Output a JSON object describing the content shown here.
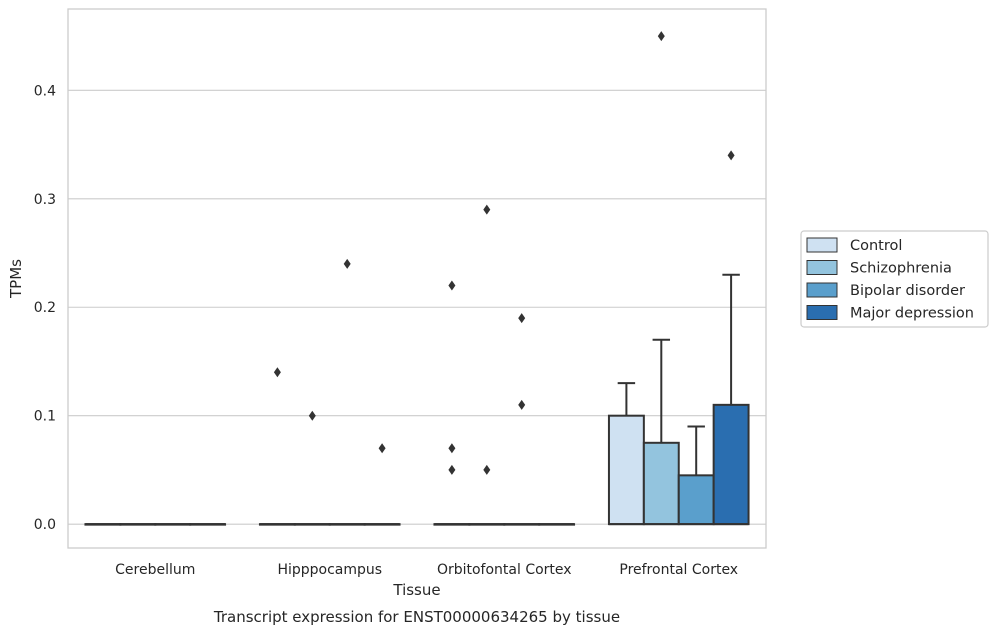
{
  "chart_data": {
    "type": "box",
    "title": "Transcript expression for ENST00000634265 by tissue",
    "xlabel": "Tissue",
    "ylabel": "TPMs",
    "ylim": [
      -0.022,
      0.475
    ],
    "yticks": [
      0.0,
      0.1,
      0.2,
      0.3,
      0.4
    ],
    "ytick_labels": [
      "0.0",
      "0.1",
      "0.2",
      "0.3",
      "0.4"
    ],
    "grid": true,
    "legend_position": "right",
    "categories": [
      "Cerebellum",
      "Hipppocampus",
      "Orbitofontal Cortex",
      "Prefrontal Cortex"
    ],
    "series": [
      {
        "name": "Control",
        "color": "#cfe1f2",
        "boxes": [
          {
            "q1": 0,
            "median": 0,
            "q3": 0,
            "whisker_low": 0,
            "whisker_high": 0,
            "outliers": []
          },
          {
            "q1": 0,
            "median": 0,
            "q3": 0,
            "whisker_low": 0,
            "whisker_high": 0,
            "outliers": [
              0.14
            ]
          },
          {
            "q1": 0,
            "median": 0,
            "q3": 0,
            "whisker_low": 0,
            "whisker_high": 0,
            "outliers": [
              0.07,
              0.05,
              0.22
            ]
          },
          {
            "q1": 0,
            "median": 0,
            "q3": 0.1,
            "whisker_low": 0,
            "whisker_high": 0.13,
            "outliers": []
          }
        ]
      },
      {
        "name": "Schizophrenia",
        "color": "#93c4de",
        "boxes": [
          {
            "q1": 0,
            "median": 0,
            "q3": 0,
            "whisker_low": 0,
            "whisker_high": 0,
            "outliers": []
          },
          {
            "q1": 0,
            "median": 0,
            "q3": 0,
            "whisker_low": 0,
            "whisker_high": 0,
            "outliers": [
              0.1
            ]
          },
          {
            "q1": 0,
            "median": 0,
            "q3": 0,
            "whisker_low": 0,
            "whisker_high": 0,
            "outliers": [
              0.29,
              0.05
            ]
          },
          {
            "q1": 0,
            "median": 0,
            "q3": 0.075,
            "whisker_low": 0,
            "whisker_high": 0.17,
            "outliers": [
              0.45
            ]
          }
        ]
      },
      {
        "name": "Bipolar disorder",
        "color": "#5a9fcc",
        "boxes": [
          {
            "q1": 0,
            "median": 0,
            "q3": 0,
            "whisker_low": 0,
            "whisker_high": 0,
            "outliers": []
          },
          {
            "q1": 0,
            "median": 0,
            "q3": 0,
            "whisker_low": 0,
            "whisker_high": 0,
            "outliers": [
              0.24
            ]
          },
          {
            "q1": 0,
            "median": 0,
            "q3": 0,
            "whisker_low": 0,
            "whisker_high": 0,
            "outliers": [
              0.19,
              0.11
            ]
          },
          {
            "q1": 0,
            "median": 0,
            "q3": 0.045,
            "whisker_low": 0,
            "whisker_high": 0.09,
            "outliers": []
          }
        ]
      },
      {
        "name": "Major depression",
        "color": "#2a6eb0",
        "boxes": [
          {
            "q1": 0,
            "median": 0,
            "q3": 0,
            "whisker_low": 0,
            "whisker_high": 0,
            "outliers": []
          },
          {
            "q1": 0,
            "median": 0,
            "q3": 0,
            "whisker_low": 0,
            "whisker_high": 0,
            "outliers": [
              0.07
            ]
          },
          {
            "q1": 0,
            "median": 0,
            "q3": 0,
            "whisker_low": 0,
            "whisker_high": 0,
            "outliers": []
          },
          {
            "q1": 0,
            "median": 0,
            "q3": 0.11,
            "whisker_low": 0,
            "whisker_high": 0.23,
            "outliers": [
              0.34
            ]
          }
        ]
      }
    ],
    "colors": {
      "axes_edge": "#cccccc",
      "grid": "#cccccc",
      "line": "#333333",
      "text": "#262626"
    }
  }
}
